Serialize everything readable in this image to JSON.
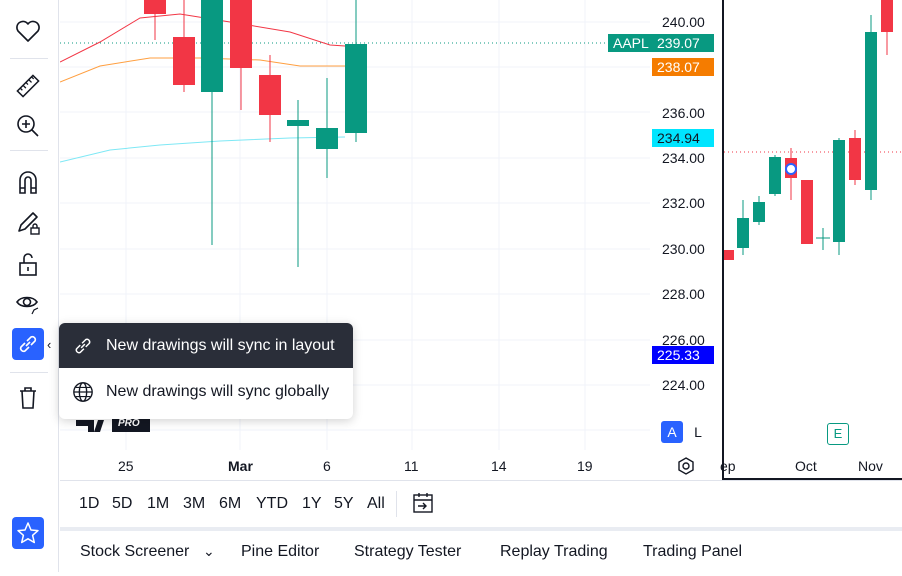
{
  "toolbar": {
    "items": [
      {
        "name": "heart-icon"
      },
      {
        "name": "ruler-icon"
      },
      {
        "name": "zoom-in-icon"
      },
      {
        "name": "magnet-icon"
      },
      {
        "name": "pencil-lock-icon"
      },
      {
        "name": "unlock-icon"
      },
      {
        "name": "eye-icon"
      },
      {
        "name": "link-icon"
      },
      {
        "name": "trash-icon"
      },
      {
        "name": "star-icon"
      }
    ]
  },
  "chart": {
    "price_labels": [
      "240.00",
      "236.00",
      "234.00",
      "232.00",
      "230.00",
      "228.00",
      "226.00",
      "224.00"
    ],
    "symbol_tag": "AAPL",
    "symbol_price": "239.07",
    "orange_price": "238.07",
    "cyan_price": "234.94",
    "blue_price": "225.33",
    "date_labels": [
      "25",
      "Mar",
      "6",
      "11",
      "14",
      "19"
    ],
    "right_dates": [
      "ep",
      "Oct",
      "Nov"
    ],
    "scale_auto": "A",
    "scale_log": "L",
    "logo_text": "PRO",
    "earnings_marker": "E",
    "colors": {
      "up": "#089981",
      "down": "#f23645",
      "accent": "#2962ff",
      "orange": "#f57c00",
      "cyan": "#00e5ff",
      "blue": "#0000ff"
    }
  },
  "popup": {
    "option_layout": "New drawings will sync in layout",
    "option_global": "New drawings will sync globally"
  },
  "periods": [
    "1D",
    "5D",
    "1M",
    "3M",
    "6M",
    "YTD",
    "1Y",
    "5Y",
    "All"
  ],
  "bottom_tabs": {
    "stock_screener": "Stock Screener",
    "pine_editor": "Pine Editor",
    "strategy_tester": "Strategy Tester",
    "replay_trading": "Replay Trading",
    "trading_panel": "Trading Panel"
  }
}
